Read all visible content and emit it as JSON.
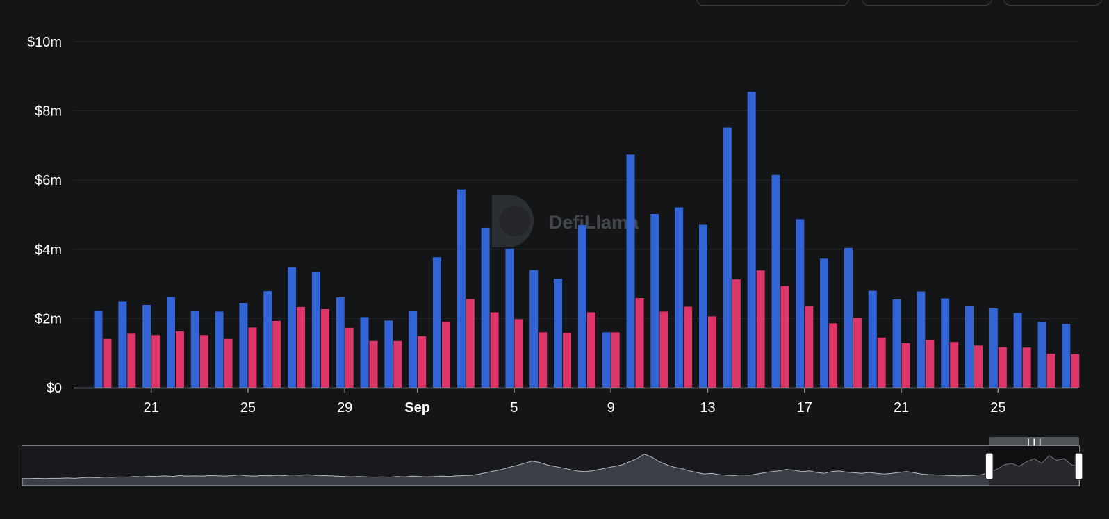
{
  "controls": [
    {
      "name": "toolbar-control-1"
    },
    {
      "name": "toolbar-control-2"
    },
    {
      "name": "toolbar-control-3"
    }
  ],
  "watermark": {
    "text": "DefiLlama",
    "icon": "llama-logo-icon"
  },
  "colors": {
    "background": "#141517",
    "series_a": "#3264d5",
    "series_b": "#dc3768",
    "grid": "#24272b",
    "axis": "#8a8d91",
    "zoom_fill": "#3b3e47",
    "zoom_line": "#b5b8bd"
  },
  "chart_data": {
    "type": "bar",
    "title": "",
    "xlabel": "",
    "ylabel": "",
    "ylim": [
      0,
      10
    ],
    "y_unit": "$m",
    "y_ticks": [
      0,
      2,
      4,
      6,
      8,
      10
    ],
    "y_tick_labels": [
      "$0",
      "$2m",
      "$4m",
      "$6m",
      "$8m",
      "$10m"
    ],
    "grid": true,
    "categories": [
      "Aug 19",
      "Aug 20",
      "Aug 21",
      "Aug 22",
      "Aug 23",
      "Aug 24",
      "Aug 25",
      "Aug 26",
      "Aug 27",
      "Aug 28",
      "Aug 29",
      "Aug 30",
      "Aug 31",
      "Sep 1",
      "Sep 2",
      "Sep 3",
      "Sep 4",
      "Sep 5",
      "Sep 6",
      "Sep 7",
      "Sep 8",
      "Sep 9",
      "Sep 10",
      "Sep 11",
      "Sep 12",
      "Sep 13",
      "Sep 14",
      "Sep 15",
      "Sep 16",
      "Sep 17",
      "Sep 18",
      "Sep 19",
      "Sep 20",
      "Sep 21",
      "Sep 22",
      "Sep 23",
      "Sep 24",
      "Sep 25",
      "Sep 26",
      "Sep 27",
      "Sep 28"
    ],
    "x_tick_labels": [
      {
        "category": "Aug 21",
        "label": "21",
        "bold": false
      },
      {
        "category": "Aug 25",
        "label": "25",
        "bold": false
      },
      {
        "category": "Aug 29",
        "label": "29",
        "bold": false
      },
      {
        "category": "Sep 1",
        "label": "Sep",
        "bold": true
      },
      {
        "category": "Sep 5",
        "label": "5",
        "bold": false
      },
      {
        "category": "Sep 9",
        "label": "9",
        "bold": false
      },
      {
        "category": "Sep 13",
        "label": "13",
        "bold": false
      },
      {
        "category": "Sep 17",
        "label": "17",
        "bold": false
      },
      {
        "category": "Sep 21",
        "label": "21",
        "bold": false
      },
      {
        "category": "Sep 25",
        "label": "25",
        "bold": false
      }
    ],
    "series": [
      {
        "color": "#3264d5",
        "values": [
          2.22,
          2.5,
          2.39,
          2.62,
          2.21,
          2.2,
          2.45,
          2.79,
          3.48,
          3.34,
          2.61,
          2.04,
          1.94,
          2.21,
          3.77,
          5.73,
          4.62,
          4.02,
          3.4,
          3.15,
          4.7,
          1.6,
          6.74,
          5.02,
          5.21,
          4.71,
          7.52,
          8.55,
          6.15,
          4.87,
          3.73,
          4.04,
          2.8,
          2.55,
          2.78,
          2.58,
          2.37,
          2.29,
          2.16,
          1.9,
          1.84
        ]
      },
      {
        "color": "#dc3768",
        "values": [
          1.41,
          1.56,
          1.52,
          1.63,
          1.52,
          1.41,
          1.74,
          1.93,
          2.33,
          2.27,
          1.73,
          1.35,
          1.35,
          1.49,
          1.91,
          2.56,
          2.18,
          1.98,
          1.6,
          1.58,
          2.18,
          1.6,
          2.59,
          2.2,
          2.34,
          2.06,
          3.13,
          3.39,
          2.94,
          2.36,
          1.86,
          2.02,
          1.45,
          1.29,
          1.38,
          1.32,
          1.22,
          1.17,
          1.16,
          0.98,
          0.97
        ]
      }
    ]
  },
  "zoom_overview": {
    "selection_start": 0.915,
    "selection_end": 1.0,
    "series_values": [
      0.05,
      0.05,
      0.06,
      0.05,
      0.06,
      0.06,
      0.07,
      0.06,
      0.08,
      0.09,
      0.08,
      0.1,
      0.09,
      0.11,
      0.1,
      0.12,
      0.11,
      0.13,
      0.12,
      0.14,
      0.12,
      0.15,
      0.13,
      0.14,
      0.13,
      0.15,
      0.14,
      0.13,
      0.15,
      0.17,
      0.14,
      0.13,
      0.15,
      0.14,
      0.16,
      0.15,
      0.17,
      0.16,
      0.18,
      0.16,
      0.15,
      0.14,
      0.13,
      0.12,
      0.11,
      0.12,
      0.11,
      0.1,
      0.11,
      0.1,
      0.12,
      0.11,
      0.13,
      0.12,
      0.11,
      0.12,
      0.13,
      0.12,
      0.14,
      0.15,
      0.16,
      0.2,
      0.25,
      0.3,
      0.35,
      0.42,
      0.48,
      0.55,
      0.62,
      0.58,
      0.5,
      0.45,
      0.4,
      0.35,
      0.3,
      0.28,
      0.3,
      0.35,
      0.4,
      0.45,
      0.5,
      0.6,
      0.7,
      0.85,
      0.75,
      0.6,
      0.5,
      0.42,
      0.38,
      0.3,
      0.25,
      0.2,
      0.22,
      0.18,
      0.16,
      0.15,
      0.17,
      0.16,
      0.2,
      0.24,
      0.28,
      0.3,
      0.35,
      0.32,
      0.28,
      0.3,
      0.25,
      0.22,
      0.28,
      0.3,
      0.26,
      0.24,
      0.22,
      0.25,
      0.22,
      0.2,
      0.22,
      0.25,
      0.28,
      0.24,
      0.2,
      0.18,
      0.17,
      0.16,
      0.15,
      0.14,
      0.15,
      0.16,
      0.18,
      0.25,
      0.35,
      0.5,
      0.55,
      0.45,
      0.6,
      0.7,
      0.55,
      0.8,
      0.65,
      0.7,
      0.5,
      0.45
    ]
  }
}
